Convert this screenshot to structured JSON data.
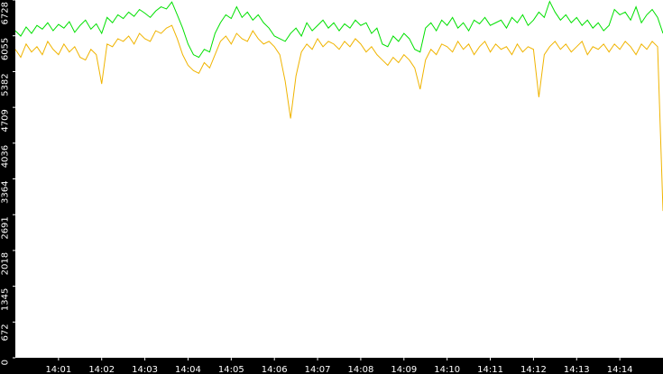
{
  "chart_data": {
    "type": "line",
    "x": [
      840,
      840.125,
      840.25,
      840.375,
      840.5,
      840.625,
      840.75,
      840.875,
      841,
      841.125,
      841.25,
      841.375,
      841.5,
      841.625,
      841.75,
      841.875,
      842,
      842.125,
      842.25,
      842.375,
      842.5,
      842.625,
      842.75,
      842.875,
      843,
      843.125,
      843.25,
      843.375,
      843.5,
      843.625,
      843.75,
      843.875,
      844,
      844.125,
      844.25,
      844.375,
      844.5,
      844.625,
      844.75,
      844.875,
      845,
      845.125,
      845.25,
      845.375,
      845.5,
      845.625,
      845.75,
      845.875,
      846,
      846.125,
      846.25,
      846.375,
      846.5,
      846.625,
      846.75,
      846.875,
      847,
      847.125,
      847.25,
      847.375,
      847.5,
      847.625,
      847.75,
      847.875,
      848,
      848.125,
      848.25,
      848.375,
      848.5,
      848.625,
      848.75,
      848.875,
      849,
      849.125,
      849.25,
      849.375,
      849.5,
      849.625,
      849.75,
      849.875,
      850,
      850.125,
      850.25,
      850.375,
      850.5,
      850.625,
      850.75,
      850.875,
      851,
      851.125,
      851.25,
      851.375,
      851.5,
      851.625,
      851.75,
      851.875,
      852,
      852.125,
      852.25,
      852.375,
      852.5,
      852.625,
      852.75,
      852.875,
      853,
      853.125,
      853.25,
      853.375,
      853.5,
      853.625,
      853.75,
      853.875,
      854,
      854.125,
      854.25,
      854.375,
      854.5,
      854.625,
      854.75,
      854.875,
      855
    ],
    "series": [
      {
        "color": "#00e000",
        "values": [
          6150,
          6050,
          6220,
          6100,
          6250,
          6180,
          6300,
          6150,
          6270,
          6200,
          6320,
          6120,
          6250,
          6350,
          6180,
          6280,
          6100,
          6400,
          6300,
          6450,
          6380,
          6500,
          6420,
          6550,
          6480,
          6400,
          6520,
          6600,
          6560,
          6690,
          6450,
          6200,
          5900,
          5700,
          5650,
          5800,
          5750,
          6100,
          6300,
          6450,
          6380,
          6600,
          6400,
          6500,
          6350,
          6450,
          6300,
          6200,
          6050,
          6000,
          5950,
          6100,
          6200,
          6050,
          6300,
          6150,
          6250,
          6350,
          6200,
          6300,
          6150,
          6280,
          6200,
          6350,
          6250,
          6300,
          6100,
          6200,
          5900,
          5850,
          6050,
          5950,
          6100,
          6000,
          5800,
          5750,
          6200,
          6300,
          6150,
          6350,
          6250,
          6400,
          6200,
          6300,
          6150,
          6350,
          6280,
          6400,
          6250,
          6300,
          6350,
          6200,
          6400,
          6300,
          6450,
          6250,
          6350,
          6500,
          6400,
          6700,
          6500,
          6350,
          6450,
          6300,
          6400,
          6250,
          6350,
          6200,
          6300,
          6150,
          6250,
          6550,
          6450,
          6500,
          6350,
          6600,
          6300,
          6450,
          6550,
          6400,
          6100
        ]
      },
      {
        "color": "#f0b400",
        "values": [
          5800,
          5650,
          5900,
          5750,
          5850,
          5700,
          5950,
          5800,
          5700,
          5900,
          5750,
          5850,
          5650,
          5600,
          5800,
          5700,
          5150,
          5900,
          5850,
          6000,
          5950,
          6050,
          5900,
          6100,
          6000,
          5950,
          6150,
          6100,
          6200,
          6250,
          6000,
          5700,
          5500,
          5400,
          5350,
          5550,
          5450,
          5700,
          5950,
          6050,
          5900,
          6100,
          6000,
          5950,
          6150,
          6000,
          5900,
          5950,
          5850,
          5700,
          5200,
          4500,
          5300,
          5750,
          5900,
          5800,
          6000,
          5850,
          5950,
          5900,
          5800,
          5950,
          5850,
          6000,
          5900,
          5750,
          5850,
          5700,
          5600,
          5500,
          5650,
          5550,
          5700,
          5600,
          5450,
          5050,
          5600,
          5800,
          5700,
          5900,
          5850,
          5750,
          5950,
          5800,
          5900,
          5700,
          5850,
          5950,
          5750,
          5900,
          5800,
          5850,
          5700,
          5900,
          5750,
          5850,
          5800,
          4900,
          5700,
          5850,
          5950,
          5800,
          5900,
          5750,
          5850,
          5950,
          5700,
          5850,
          5800,
          5900,
          5750,
          5900,
          5800,
          5950,
          5850,
          5700,
          5900,
          5800,
          5950,
          5850,
          2760
        ]
      }
    ],
    "xlim": [
      840,
      855
    ],
    "xticks": [
      {
        "value": 841,
        "label": "14:01"
      },
      {
        "value": 842,
        "label": "14:02"
      },
      {
        "value": 843,
        "label": "14:03"
      },
      {
        "value": 844,
        "label": "14:04"
      },
      {
        "value": 845,
        "label": "14:05"
      },
      {
        "value": 846,
        "label": "14:06"
      },
      {
        "value": 847,
        "label": "14:07"
      },
      {
        "value": 848,
        "label": "14:08"
      },
      {
        "value": 849,
        "label": "14:09"
      },
      {
        "value": 850,
        "label": "14:10"
      },
      {
        "value": 851,
        "label": "14:11"
      },
      {
        "value": 852,
        "label": "14:12"
      },
      {
        "value": 853,
        "label": "14:13"
      },
      {
        "value": 854,
        "label": "14:14"
      }
    ],
    "ylim": [
      0,
      6728
    ],
    "yticks": [
      0,
      672,
      1345,
      2018,
      2691,
      3364,
      4036,
      4709,
      5382,
      6055,
      6728
    ]
  }
}
